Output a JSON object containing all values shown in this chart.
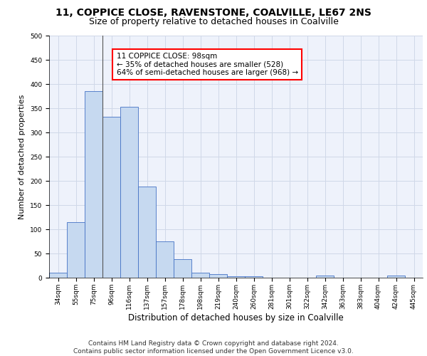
{
  "title1": "11, COPPICE CLOSE, RAVENSTONE, COALVILLE, LE67 2NS",
  "title2": "Size of property relative to detached houses in Coalville",
  "xlabel": "Distribution of detached houses by size in Coalville",
  "ylabel": "Number of detached properties",
  "categories": [
    "34sqm",
    "55sqm",
    "75sqm",
    "96sqm",
    "116sqm",
    "137sqm",
    "157sqm",
    "178sqm",
    "198sqm",
    "219sqm",
    "240sqm",
    "260sqm",
    "281sqm",
    "301sqm",
    "322sqm",
    "342sqm",
    "363sqm",
    "383sqm",
    "404sqm",
    "424sqm",
    "445sqm"
  ],
  "values": [
    11,
    115,
    385,
    332,
    353,
    188,
    75,
    38,
    11,
    7,
    3,
    3,
    0,
    0,
    0,
    5,
    0,
    0,
    0,
    5,
    0
  ],
  "bar_color": "#c6d9f0",
  "bar_edge_color": "#4472c4",
  "annotation_box_text": "11 COPPICE CLOSE: 98sqm\n← 35% of detached houses are smaller (528)\n64% of semi-detached houses are larger (968) →",
  "vline_color": "#555555",
  "ylim": [
    0,
    500
  ],
  "yticks": [
    0,
    50,
    100,
    150,
    200,
    250,
    300,
    350,
    400,
    450,
    500
  ],
  "grid_color": "#d0d8e8",
  "background_color": "#eef2fb",
  "footer_text": "Contains HM Land Registry data © Crown copyright and database right 2024.\nContains public sector information licensed under the Open Government Licence v3.0.",
  "title1_fontsize": 10,
  "title2_fontsize": 9,
  "xlabel_fontsize": 8.5,
  "ylabel_fontsize": 8,
  "annotation_fontsize": 7.5,
  "footer_fontsize": 6.5,
  "tick_fontsize": 6.5
}
